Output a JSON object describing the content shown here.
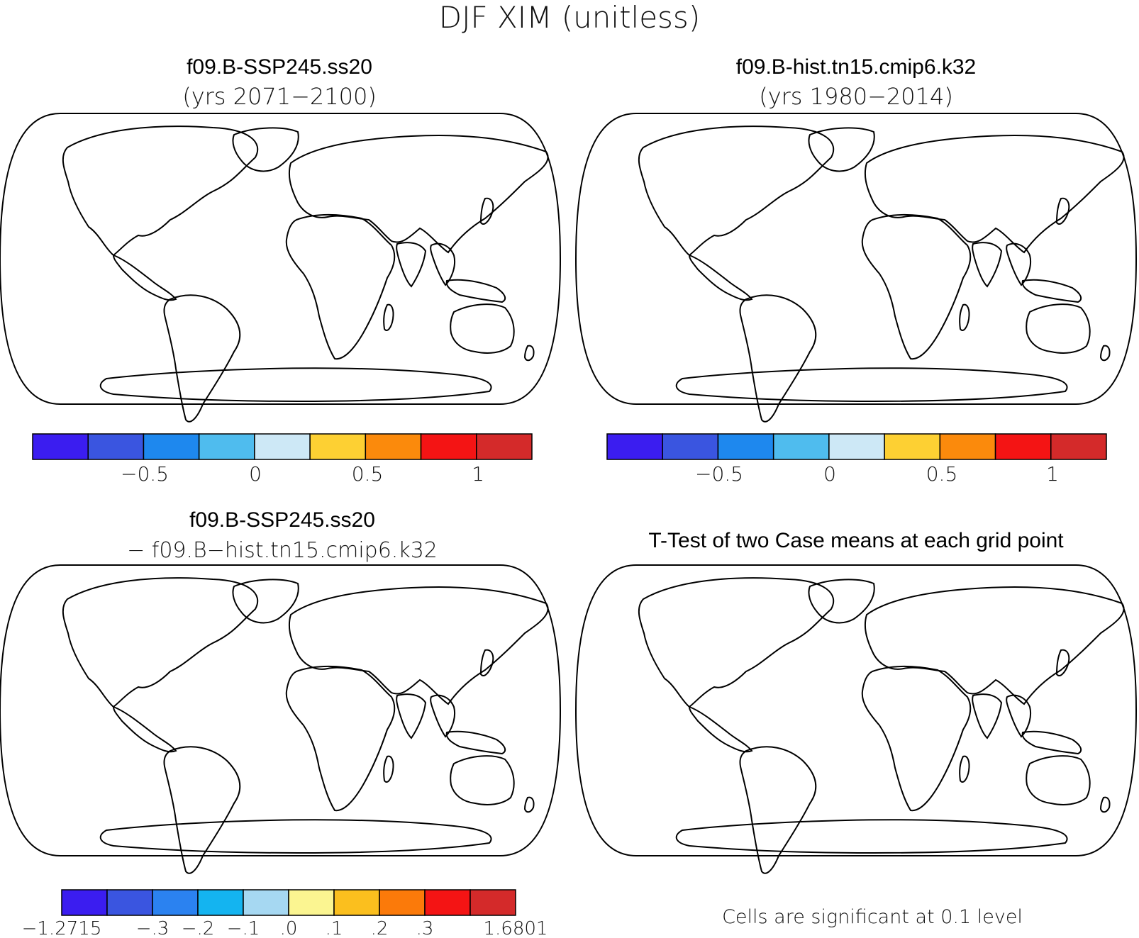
{
  "figure": {
    "title": "DJF XIM (unitless)"
  },
  "panels": [
    {
      "id": "case",
      "title": "f09.B-SSP245.ss20",
      "subtitle": "(yrs 2071−2100)",
      "colorbar": {
        "colors": [
          "#3b1df0",
          "#3a55e0",
          "#1e88ee",
          "#4fbcee",
          "#cde8f6",
          "#fdd033",
          "#fb8a0c",
          "#f41414",
          "#d42a2a"
        ],
        "tick_labels": [
          "−0.5",
          "0",
          "0.5",
          "1"
        ]
      }
    },
    {
      "id": "control",
      "title": "f09.B-hist.tn15.cmip6.k32",
      "subtitle": "(yrs 1980−2014)",
      "colorbar": {
        "colors": [
          "#3b1df0",
          "#3a55e0",
          "#1e88ee",
          "#4fbcee",
          "#cde8f6",
          "#fdd033",
          "#fb8a0c",
          "#f41414",
          "#d42a2a"
        ],
        "tick_labels": [
          "−0.5",
          "0",
          "0.5",
          "1"
        ]
      }
    },
    {
      "id": "difference",
      "title": "f09.B-SSP245.ss20",
      "subtitle": "−  f09.B−hist.tn15.cmip6.k32",
      "colorbar": {
        "colors": [
          "#3b1df0",
          "#3a55e0",
          "#2b82f0",
          "#14b4f0",
          "#a6d8f2",
          "#fbf591",
          "#fbbf1e",
          "#fb7a0a",
          "#f41414",
          "#d42a2a"
        ],
        "tick_labels": [
          "−1.2715",
          "−.3",
          "−.2",
          "−.1",
          ".0",
          ".1",
          ".2",
          ".3",
          "1.6801"
        ]
      }
    },
    {
      "id": "ttest",
      "title": "T-Test of two Case means at each grid point",
      "note": "Cells are significant at 0.1 level",
      "significant_color": "#ee0000"
    }
  ]
}
